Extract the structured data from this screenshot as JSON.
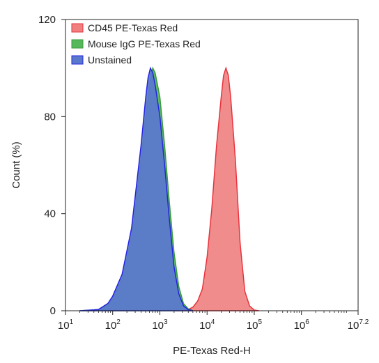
{
  "chart_data": {
    "type": "area",
    "xlabel": "PE-Texas Red-H",
    "ylabel": "Count (%)",
    "xscale": "log",
    "xlim": [
      10,
      15848931.9
    ],
    "ylim": [
      0,
      120
    ],
    "xticks": [
      {
        "value": 10,
        "base": "10",
        "exp": "1"
      },
      {
        "value": 100,
        "base": "10",
        "exp": "2"
      },
      {
        "value": 1000,
        "base": "10",
        "exp": "3"
      },
      {
        "value": 10000,
        "base": "10",
        "exp": "4"
      },
      {
        "value": 100000,
        "base": "10",
        "exp": "5"
      },
      {
        "value": 1000000,
        "base": "10",
        "exp": "6"
      },
      {
        "value": 15848931.9,
        "base": "10",
        "exp": "7.2"
      }
    ],
    "yticks": [
      "0",
      "40",
      "80",
      "120"
    ],
    "grid": false,
    "legend_position": "top-left",
    "series": [
      {
        "name": "CD45 PE-Texas Red",
        "fill": "#f07f7f",
        "stroke": "#e8323c",
        "x": [
          1995,
          3981,
          5012,
          6310,
          7943,
          10000,
          12589,
          15849,
          19953,
          22387,
          25119,
          28184,
          31623,
          39811,
          50119,
          63096,
          79433,
          100000,
          125893
        ],
        "y": [
          0,
          0.5,
          1.5,
          4,
          9,
          22,
          42,
          68,
          88,
          97,
          100,
          97,
          88,
          62,
          28,
          8,
          2,
          0.3,
          0
        ]
      },
      {
        "name": "Mouse IgG PE-Texas Red",
        "fill": "#55b85a",
        "stroke": "#3a9a3e",
        "x": [
          20,
          50,
          79,
          100,
          158,
          251,
          398,
          501,
          631,
          708,
          794,
          1000,
          1259,
          1585,
          1995,
          2512,
          3162,
          3981,
          5012
        ],
        "y": [
          0,
          0.5,
          3,
          5,
          13,
          30,
          62,
          80,
          95,
          100,
          98,
          88,
          68,
          45,
          24,
          10,
          3,
          0.8,
          0
        ]
      },
      {
        "name": "Unstained",
        "fill": "#5b79cc",
        "stroke": "#2424e0",
        "x": [
          20,
          50,
          79,
          100,
          158,
          251,
          398,
          501,
          562,
          631,
          708,
          794,
          1000,
          1259,
          1585,
          1995,
          2512,
          3162,
          3981,
          5012
        ],
        "y": [
          0,
          0.5,
          3,
          6,
          15,
          34,
          68,
          88,
          96,
          100,
          98,
          93,
          80,
          60,
          38,
          18,
          7,
          2,
          0.5,
          0
        ]
      }
    ]
  }
}
